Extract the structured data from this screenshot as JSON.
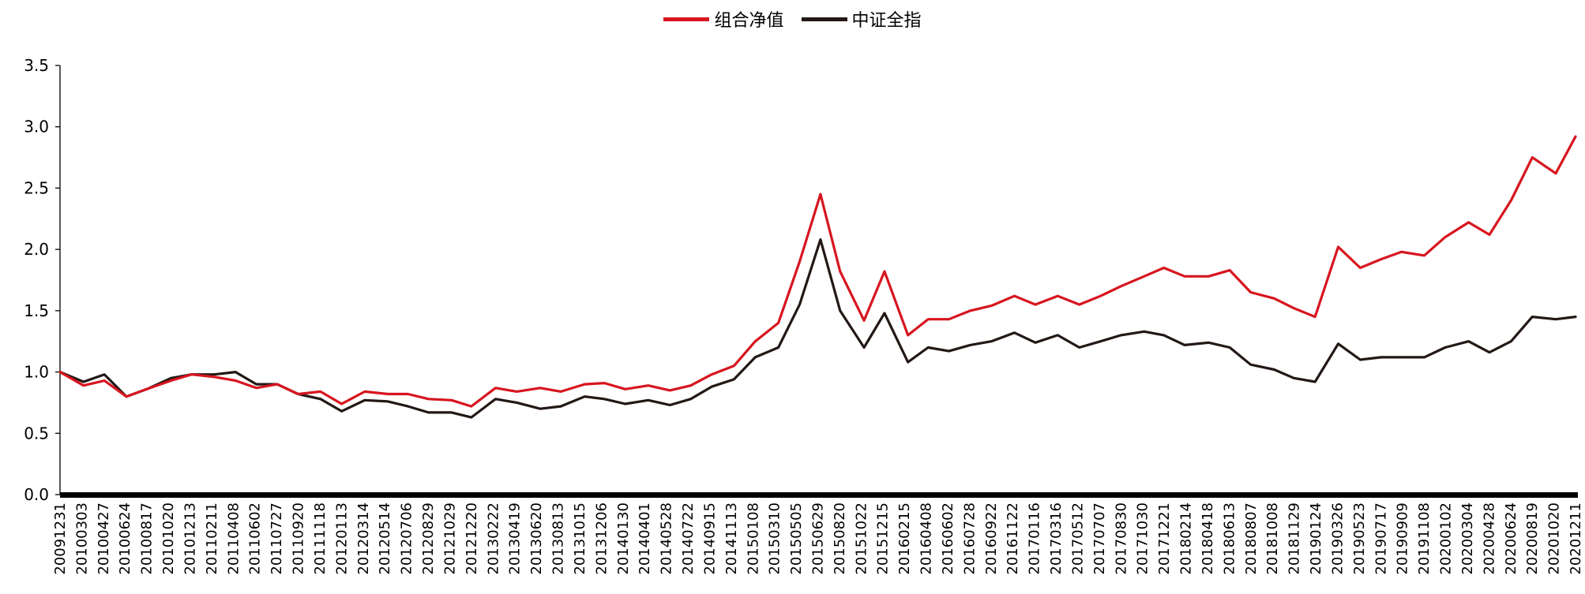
{
  "chart_data": {
    "type": "line",
    "title": "",
    "xlabel": "",
    "ylabel": "",
    "ylim": [
      0,
      3.5
    ],
    "yticks": [
      "0.0",
      "0.5",
      "1.0",
      "1.5",
      "2.0",
      "2.5",
      "3.0",
      "3.5"
    ],
    "x_ticklabels": [
      "20091231",
      "20100303",
      "20100427",
      "20100624",
      "20100817",
      "20101020",
      "20101213",
      "20110211",
      "20110408",
      "20110602",
      "20110727",
      "20110920",
      "20111118",
      "20120113",
      "20120314",
      "20120514",
      "20120706",
      "20120829",
      "20121029",
      "20121220",
      "20130222",
      "20130419",
      "20130620",
      "20130813",
      "20131015",
      "20131206",
      "20140130",
      "20140401",
      "20140528",
      "20140722",
      "20140915",
      "20141113",
      "20150108",
      "20150310",
      "20150505",
      "20150629",
      "20150820",
      "20151022",
      "20151215",
      "20160215",
      "20160408",
      "20160602",
      "20160728",
      "20160922",
      "20161122",
      "20170116",
      "20170316",
      "20170512",
      "20170707",
      "20170830",
      "20171030",
      "20171221",
      "20180214",
      "20180418",
      "20180613",
      "20180807",
      "20181008",
      "20181129",
      "20190124",
      "20190326",
      "20190523",
      "20190717",
      "20190909",
      "20191108",
      "20200102",
      "20200304",
      "20200428",
      "20200624",
      "20200819",
      "20201020",
      "20201211"
    ],
    "legend": {
      "position": "top-center"
    },
    "grid": false,
    "series": [
      {
        "name": "组合净值",
        "color": "#d7151f",
        "points": [
          [
            "20091231",
            1.0
          ],
          [
            "20100303",
            0.89
          ],
          [
            "20100427",
            0.93
          ],
          [
            "20100624",
            0.8
          ],
          [
            "20100817",
            0.86
          ],
          [
            "20101020",
            0.93
          ],
          [
            "20101213",
            0.98
          ],
          [
            "20110211",
            0.96
          ],
          [
            "20110408",
            0.93
          ],
          [
            "20110602",
            0.87
          ],
          [
            "20110727",
            0.9
          ],
          [
            "20110920",
            0.82
          ],
          [
            "20111118",
            0.84
          ],
          [
            "20120113",
            0.74
          ],
          [
            "20120314",
            0.84
          ],
          [
            "20120514",
            0.82
          ],
          [
            "20120706",
            0.82
          ],
          [
            "20120829",
            0.78
          ],
          [
            "20121029",
            0.77
          ],
          [
            "20121220",
            0.72
          ],
          [
            "20130222",
            0.87
          ],
          [
            "20130419",
            0.84
          ],
          [
            "20130620",
            0.87
          ],
          [
            "20130813",
            0.84
          ],
          [
            "20131015",
            0.9
          ],
          [
            "20131206",
            0.91
          ],
          [
            "20140130",
            0.86
          ],
          [
            "20140401",
            0.89
          ],
          [
            "20140528",
            0.85
          ],
          [
            "20140722",
            0.89
          ],
          [
            "20140915",
            0.98
          ],
          [
            "20141113",
            1.05
          ],
          [
            "20150108",
            1.25
          ],
          [
            "20150310",
            1.4
          ],
          [
            "20150505",
            1.9
          ],
          [
            "20150629",
            2.45
          ],
          [
            "20150820",
            1.82
          ],
          [
            "20151022",
            1.42
          ],
          [
            "20151215",
            1.82
          ],
          [
            "20160215",
            1.3
          ],
          [
            "20160408",
            1.43
          ],
          [
            "20160602",
            1.43
          ],
          [
            "20160728",
            1.5
          ],
          [
            "20160922",
            1.54
          ],
          [
            "20161122",
            1.62
          ],
          [
            "20170116",
            1.55
          ],
          [
            "20170316",
            1.62
          ],
          [
            "20170512",
            1.55
          ],
          [
            "20170707",
            1.62
          ],
          [
            "20170830",
            1.7
          ],
          [
            "20171030",
            1.78
          ],
          [
            "20171221",
            1.85
          ],
          [
            "20180214",
            1.78
          ],
          [
            "20180418",
            1.78
          ],
          [
            "20180613",
            1.83
          ],
          [
            "20180807",
            1.65
          ],
          [
            "20181008",
            1.6
          ],
          [
            "20181129",
            1.52
          ],
          [
            "20190124",
            1.45
          ],
          [
            "20190326",
            2.02
          ],
          [
            "20190523",
            1.85
          ],
          [
            "20190717",
            1.92
          ],
          [
            "20190909",
            1.98
          ],
          [
            "20191108",
            1.95
          ],
          [
            "20200102",
            2.1
          ],
          [
            "20200304",
            2.22
          ],
          [
            "20200428",
            2.12
          ],
          [
            "20200624",
            2.4
          ],
          [
            "20200819",
            2.75
          ],
          [
            "20201020",
            2.62
          ],
          [
            "20201211",
            2.92
          ]
        ]
      },
      {
        "name": "中证全指",
        "color": "#231815",
        "points": [
          [
            "20091231",
            1.0
          ],
          [
            "20100303",
            0.92
          ],
          [
            "20100427",
            0.98
          ],
          [
            "20100624",
            0.8
          ],
          [
            "20100817",
            0.86
          ],
          [
            "20101020",
            0.95
          ],
          [
            "20101213",
            0.98
          ],
          [
            "20110211",
            0.98
          ],
          [
            "20110408",
            1.0
          ],
          [
            "20110602",
            0.9
          ],
          [
            "20110727",
            0.9
          ],
          [
            "20110920",
            0.82
          ],
          [
            "20111118",
            0.78
          ],
          [
            "20120113",
            0.68
          ],
          [
            "20120314",
            0.77
          ],
          [
            "20120514",
            0.76
          ],
          [
            "20120706",
            0.72
          ],
          [
            "20120829",
            0.67
          ],
          [
            "20121029",
            0.67
          ],
          [
            "20121220",
            0.63
          ],
          [
            "20130222",
            0.78
          ],
          [
            "20130419",
            0.75
          ],
          [
            "20130620",
            0.7
          ],
          [
            "20130813",
            0.72
          ],
          [
            "20131015",
            0.8
          ],
          [
            "20131206",
            0.78
          ],
          [
            "20140130",
            0.74
          ],
          [
            "20140401",
            0.77
          ],
          [
            "20140528",
            0.73
          ],
          [
            "20140722",
            0.78
          ],
          [
            "20140915",
            0.88
          ],
          [
            "20141113",
            0.94
          ],
          [
            "20150108",
            1.12
          ],
          [
            "20150310",
            1.2
          ],
          [
            "20150505",
            1.55
          ],
          [
            "20150629",
            2.08
          ],
          [
            "20150820",
            1.5
          ],
          [
            "20151022",
            1.2
          ],
          [
            "20151215",
            1.48
          ],
          [
            "20160215",
            1.08
          ],
          [
            "20160408",
            1.2
          ],
          [
            "20160602",
            1.17
          ],
          [
            "20160728",
            1.22
          ],
          [
            "20160922",
            1.25
          ],
          [
            "20161122",
            1.32
          ],
          [
            "20170116",
            1.24
          ],
          [
            "20170316",
            1.3
          ],
          [
            "20170512",
            1.2
          ],
          [
            "20170707",
            1.25
          ],
          [
            "20170830",
            1.3
          ],
          [
            "20171030",
            1.33
          ],
          [
            "20171221",
            1.3
          ],
          [
            "20180214",
            1.22
          ],
          [
            "20180418",
            1.24
          ],
          [
            "20180613",
            1.2
          ],
          [
            "20180807",
            1.06
          ],
          [
            "20181008",
            1.02
          ],
          [
            "20181129",
            0.95
          ],
          [
            "20190124",
            0.92
          ],
          [
            "20190326",
            1.23
          ],
          [
            "20190523",
            1.1
          ],
          [
            "20190717",
            1.12
          ],
          [
            "20190909",
            1.12
          ],
          [
            "20191108",
            1.12
          ],
          [
            "20200102",
            1.2
          ],
          [
            "20200304",
            1.25
          ],
          [
            "20200428",
            1.16
          ],
          [
            "20200624",
            1.25
          ],
          [
            "20200819",
            1.45
          ],
          [
            "20201020",
            1.43
          ],
          [
            "20201211",
            1.45
          ]
        ]
      }
    ]
  }
}
